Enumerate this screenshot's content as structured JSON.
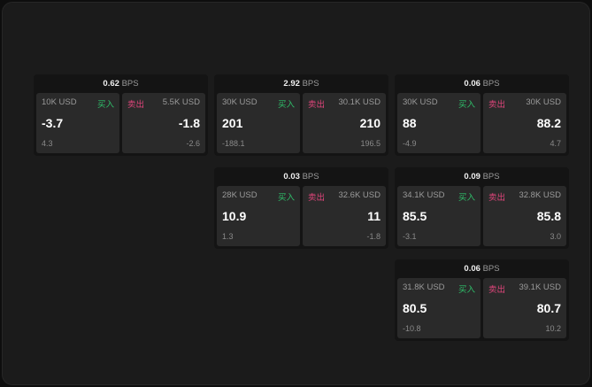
{
  "unit": "BPS",
  "buy_label": "买入",
  "sell_label": "卖出",
  "colors": {
    "buy": "#2fbf6a",
    "sell": "#e0457b"
  },
  "cards": [
    {
      "bps": "0.62",
      "bid": {
        "size": "10K USD",
        "price": "-3.7",
        "change": "4.3"
      },
      "ask": {
        "size": "5.5K USD",
        "price": "-1.8",
        "change": "-2.6"
      }
    },
    {
      "bps": "2.92",
      "bid": {
        "size": "30K USD",
        "price": "201",
        "change": "-188.1"
      },
      "ask": {
        "size": "30.1K USD",
        "price": "210",
        "change": "196.5"
      }
    },
    {
      "bps": "0.06",
      "bid": {
        "size": "30K USD",
        "price": "88",
        "change": "-4.9"
      },
      "ask": {
        "size": "30K USD",
        "price": "88.2",
        "change": "4.7"
      }
    },
    {
      "bps": "0.03",
      "bid": {
        "size": "28K USD",
        "price": "10.9",
        "change": "1.3"
      },
      "ask": {
        "size": "32.6K USD",
        "price": "11",
        "change": "-1.8"
      }
    },
    {
      "bps": "0.09",
      "bid": {
        "size": "34.1K USD",
        "price": "85.5",
        "change": "-3.1"
      },
      "ask": {
        "size": "32.8K USD",
        "price": "85.8",
        "change": "3.0"
      }
    },
    {
      "bps": "0.06",
      "bid": {
        "size": "31.8K USD",
        "price": "80.5",
        "change": "-10.8"
      },
      "ask": {
        "size": "39.1K USD",
        "price": "80.7",
        "change": "10.2"
      }
    }
  ]
}
